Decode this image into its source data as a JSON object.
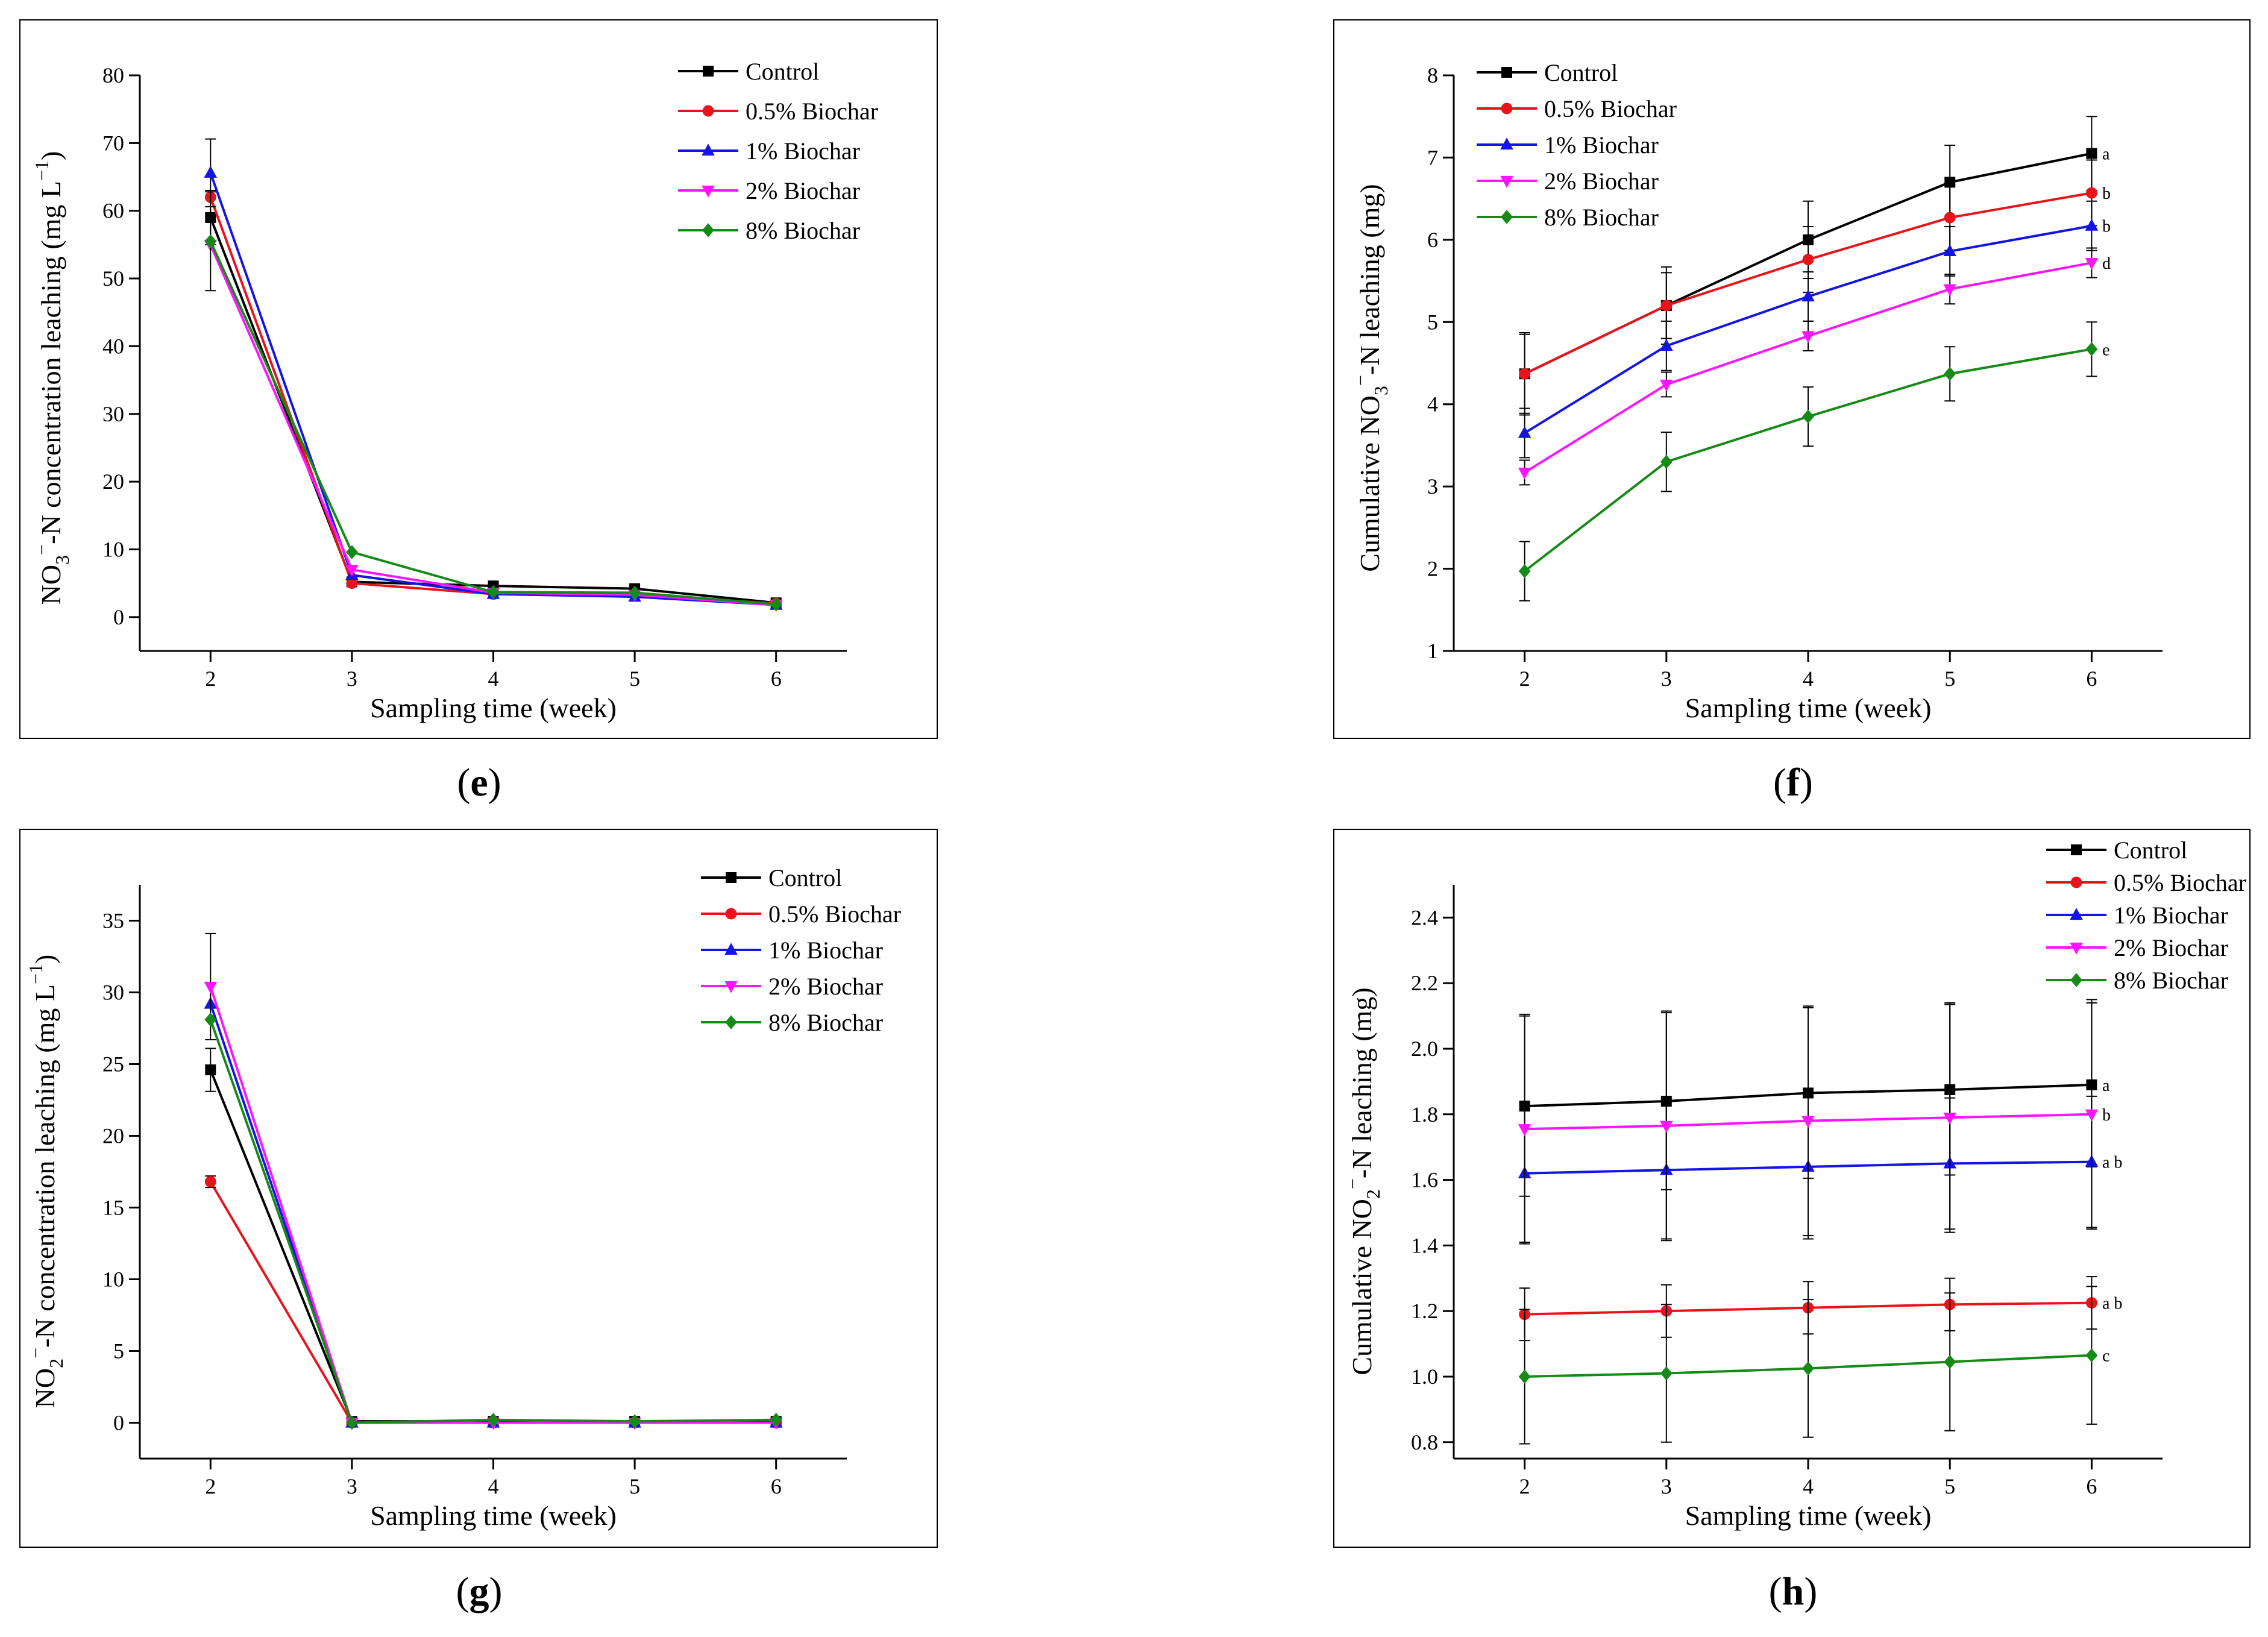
{
  "colors": {
    "Control": "#000000",
    "0.5% Biochar": "#e8141b",
    "1% Biochar": "#1414e6",
    "2% Biochar": "#ff14ff",
    "8% Biochar": "#168a16"
  },
  "chart_data": [
    {
      "panel": "e",
      "type": "line",
      "caption_letter": "e",
      "xlabel": "Sampling time (week)",
      "ylabel_parts": {
        "a": "NO",
        "sub": "3",
        "sup": "−",
        "b": "-N  concentration leaching (mg L",
        "sup2": "−1",
        "c": ")"
      },
      "x": [
        2,
        3,
        4,
        5,
        6
      ],
      "xlim": [
        1.5,
        6.5
      ],
      "ylim": [
        -5,
        80
      ],
      "yticks": [
        0,
        10,
        20,
        30,
        40,
        50,
        60,
        70,
        80
      ],
      "legend": "top-right",
      "series": [
        {
          "name": "Control",
          "marker": "square",
          "values": [
            59,
            5.2,
            4.6,
            4.2,
            2.1
          ],
          "errors": [
            4,
            0,
            0,
            0,
            0
          ]
        },
        {
          "name": "0.5% Biochar",
          "marker": "circle",
          "values": [
            62,
            5.0,
            3.4,
            3.3,
            2.0
          ],
          "errors": [
            0,
            0,
            0,
            0,
            0
          ]
        },
        {
          "name": "1% Biochar",
          "marker": "triangle-up",
          "values": [
            65.6,
            6.2,
            3.4,
            3.0,
            1.8
          ],
          "errors": [
            5,
            0,
            0,
            0,
            0
          ]
        },
        {
          "name": "2% Biochar",
          "marker": "triangle-down",
          "values": [
            55,
            7.0,
            3.6,
            3.3,
            1.8
          ],
          "errors": [
            0,
            0,
            0,
            0,
            0
          ]
        },
        {
          "name": "8% Biochar",
          "marker": "diamond",
          "values": [
            55.5,
            9.6,
            3.7,
            3.6,
            1.9
          ],
          "errors": [
            7.3,
            0,
            0,
            0,
            0
          ]
        }
      ]
    },
    {
      "panel": "f",
      "type": "line",
      "caption_letter": "f",
      "xlabel": "Sampling time (week)",
      "ylabel_parts": {
        "a": "Cumulative NO",
        "sub": "3",
        "sup": "−",
        "b": "-N  leaching (mg)"
      },
      "x": [
        2,
        3,
        4,
        5,
        6
      ],
      "xlim": [
        1.5,
        6.5
      ],
      "ylim": [
        1,
        8
      ],
      "yticks": [
        1,
        2,
        3,
        4,
        5,
        6,
        7,
        8
      ],
      "legend": "top-left",
      "significance": [
        "a",
        "b",
        "b",
        "d",
        "e"
      ],
      "series": [
        {
          "name": "Control",
          "marker": "square",
          "values": [
            4.37,
            5.2,
            6.0,
            6.7,
            7.05
          ],
          "errors": [
            0.48,
            0.47,
            0.47,
            0.45,
            0.45
          ]
        },
        {
          "name": "0.5% Biochar",
          "marker": "circle",
          "values": [
            4.37,
            5.2,
            5.76,
            6.27,
            6.57
          ],
          "errors": [
            0.5,
            0.4,
            0.4,
            0.4,
            0.4
          ]
        },
        {
          "name": "1% Biochar",
          "marker": "triangle-up",
          "values": [
            3.65,
            4.71,
            5.31,
            5.86,
            6.17
          ],
          "errors": [
            0.3,
            0.3,
            0.3,
            0.3,
            0.3
          ]
        },
        {
          "name": "2% Biochar",
          "marker": "triangle-down",
          "values": [
            3.17,
            4.24,
            4.83,
            5.4,
            5.72
          ],
          "errors": [
            0.15,
            0.15,
            0.18,
            0.18,
            0.18
          ]
        },
        {
          "name": "8% Biochar",
          "marker": "diamond",
          "values": [
            1.97,
            3.3,
            3.85,
            4.37,
            4.67
          ],
          "errors": [
            0.36,
            0.36,
            0.36,
            0.33,
            0.33
          ]
        }
      ]
    },
    {
      "panel": "g",
      "type": "line",
      "caption_letter": "g",
      "xlabel": "Sampling time (week)",
      "ylabel_parts": {
        "a": "NO",
        "sub": "2",
        "sup": "−",
        "b": "-N  concentration leaching (mg L",
        "sup2": "−1",
        "c": ")"
      },
      "x": [
        2,
        3,
        4,
        5,
        6
      ],
      "xlim": [
        1.5,
        6.5
      ],
      "ylim": [
        -2.5,
        37.5
      ],
      "yticks": [
        0,
        5,
        10,
        15,
        20,
        25,
        30,
        35
      ],
      "legend": "top-right",
      "series": [
        {
          "name": "Control",
          "marker": "square",
          "values": [
            24.6,
            0.1,
            0.1,
            0.1,
            0.1
          ],
          "errors": [
            1.5,
            0,
            0,
            0,
            0
          ]
        },
        {
          "name": "0.5% Biochar",
          "marker": "circle",
          "values": [
            16.8,
            0,
            0,
            0,
            0
          ],
          "errors": [
            0.4,
            0,
            0,
            0,
            0
          ]
        },
        {
          "name": "1% Biochar",
          "marker": "triangle-up",
          "values": [
            29.2,
            0,
            0,
            0,
            0
          ],
          "errors": [
            0,
            0,
            0,
            0,
            0
          ]
        },
        {
          "name": "2% Biochar",
          "marker": "triangle-down",
          "values": [
            30.4,
            0,
            0,
            0,
            0
          ],
          "errors": [
            3.7,
            0,
            0,
            0,
            0
          ]
        },
        {
          "name": "8% Biochar",
          "marker": "diamond",
          "values": [
            28.1,
            0,
            0.2,
            0.1,
            0.2
          ],
          "errors": [
            0,
            0,
            0,
            0,
            0
          ]
        }
      ]
    },
    {
      "panel": "h",
      "type": "line",
      "caption_letter": "h",
      "xlabel": "Sampling time (week)",
      "ylabel_parts": {
        "a": "Cumulative NO",
        "sub": "2",
        "sup": "−",
        "b": "-N  leaching (mg)"
      },
      "x": [
        2,
        3,
        4,
        5,
        6
      ],
      "xlim": [
        1.5,
        6.5
      ],
      "ylim": [
        0.75,
        2.5
      ],
      "yticks": [
        0.8,
        1.0,
        1.2,
        1.4,
        1.6,
        1.8,
        2.0,
        2.2,
        2.4
      ],
      "tick_decimals": 1,
      "legend": "top-right",
      "significance": [
        "a",
        "a b",
        "a b",
        "b",
        "c"
      ],
      "series": [
        {
          "name": "Control",
          "marker": "square",
          "values": [
            1.825,
            1.84,
            1.865,
            1.875,
            1.89
          ],
          "errors": [
            0.275,
            0.27,
            0.26,
            0.26,
            0.25
          ]
        },
        {
          "name": "0.5% Biochar",
          "marker": "circle",
          "values": [
            1.19,
            1.2,
            1.21,
            1.22,
            1.225
          ],
          "errors": [
            0.08,
            0.08,
            0.08,
            0.08,
            0.08
          ]
        },
        {
          "name": "1% Biochar",
          "marker": "triangle-up",
          "values": [
            1.62,
            1.63,
            1.64,
            1.65,
            1.655
          ],
          "errors": [
            0.21,
            0.21,
            0.22,
            0.2,
            0.2
          ]
        },
        {
          "name": "2% Biochar",
          "marker": "triangle-down",
          "values": [
            1.755,
            1.765,
            1.78,
            1.79,
            1.8
          ],
          "errors": [
            0.35,
            0.35,
            0.35,
            0.35,
            0.35
          ]
        },
        {
          "name": "8% Biochar",
          "marker": "diamond",
          "values": [
            1.0,
            1.01,
            1.025,
            1.045,
            1.065
          ],
          "errors": [
            0.205,
            0.21,
            0.21,
            0.21,
            0.21
          ]
        }
      ]
    }
  ]
}
